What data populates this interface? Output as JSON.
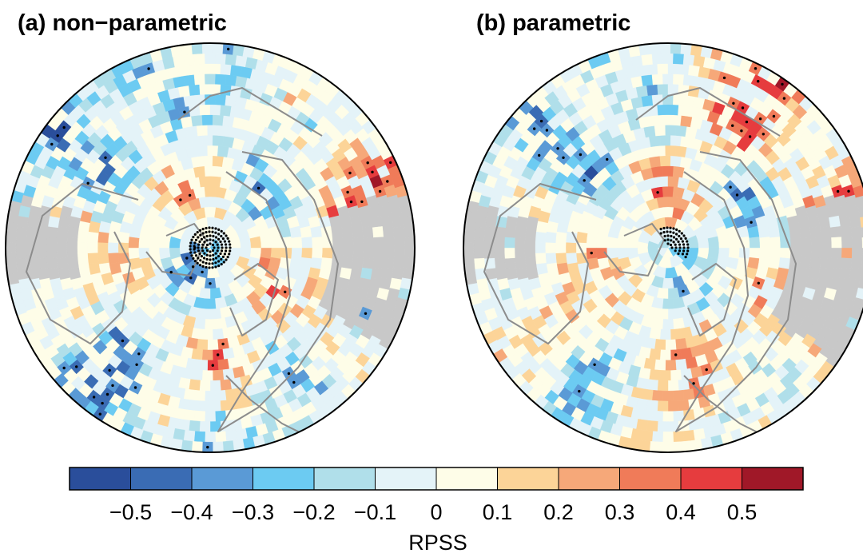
{
  "panels": [
    {
      "id": "a",
      "title": "(a) non−parametric"
    },
    {
      "id": "b",
      "title": "(b) parametric"
    }
  ],
  "colorbar": {
    "label": "RPSS",
    "colors": [
      "#2a4e9b",
      "#3a6cb4",
      "#5a9ad6",
      "#6ccbf2",
      "#b0dfea",
      "#e4f3f8",
      "#fefde8",
      "#fcd498",
      "#f6a879",
      "#f07b59",
      "#e63c3e",
      "#a01828"
    ],
    "ticks": [
      {
        "value": -0.5,
        "label": "−0.5"
      },
      {
        "value": -0.4,
        "label": "−0.4"
      },
      {
        "value": -0.3,
        "label": "−0.3"
      },
      {
        "value": -0.2,
        "label": "−0.2"
      },
      {
        "value": -0.1,
        "label": "−0.1"
      },
      {
        "value": 0,
        "label": "0"
      },
      {
        "value": 0.1,
        "label": "0.1"
      },
      {
        "value": 0.2,
        "label": "0.2"
      },
      {
        "value": 0.3,
        "label": "0.3"
      },
      {
        "value": 0.4,
        "label": "0.4"
      },
      {
        "value": 0.5,
        "label": "0.5"
      }
    ],
    "range": [
      -0.6,
      0.6
    ]
  },
  "colors": {
    "missing": "#c8c8c8",
    "coastline": "#8c8c8c",
    "outline": "#000000",
    "stipple": "#000000"
  }
}
